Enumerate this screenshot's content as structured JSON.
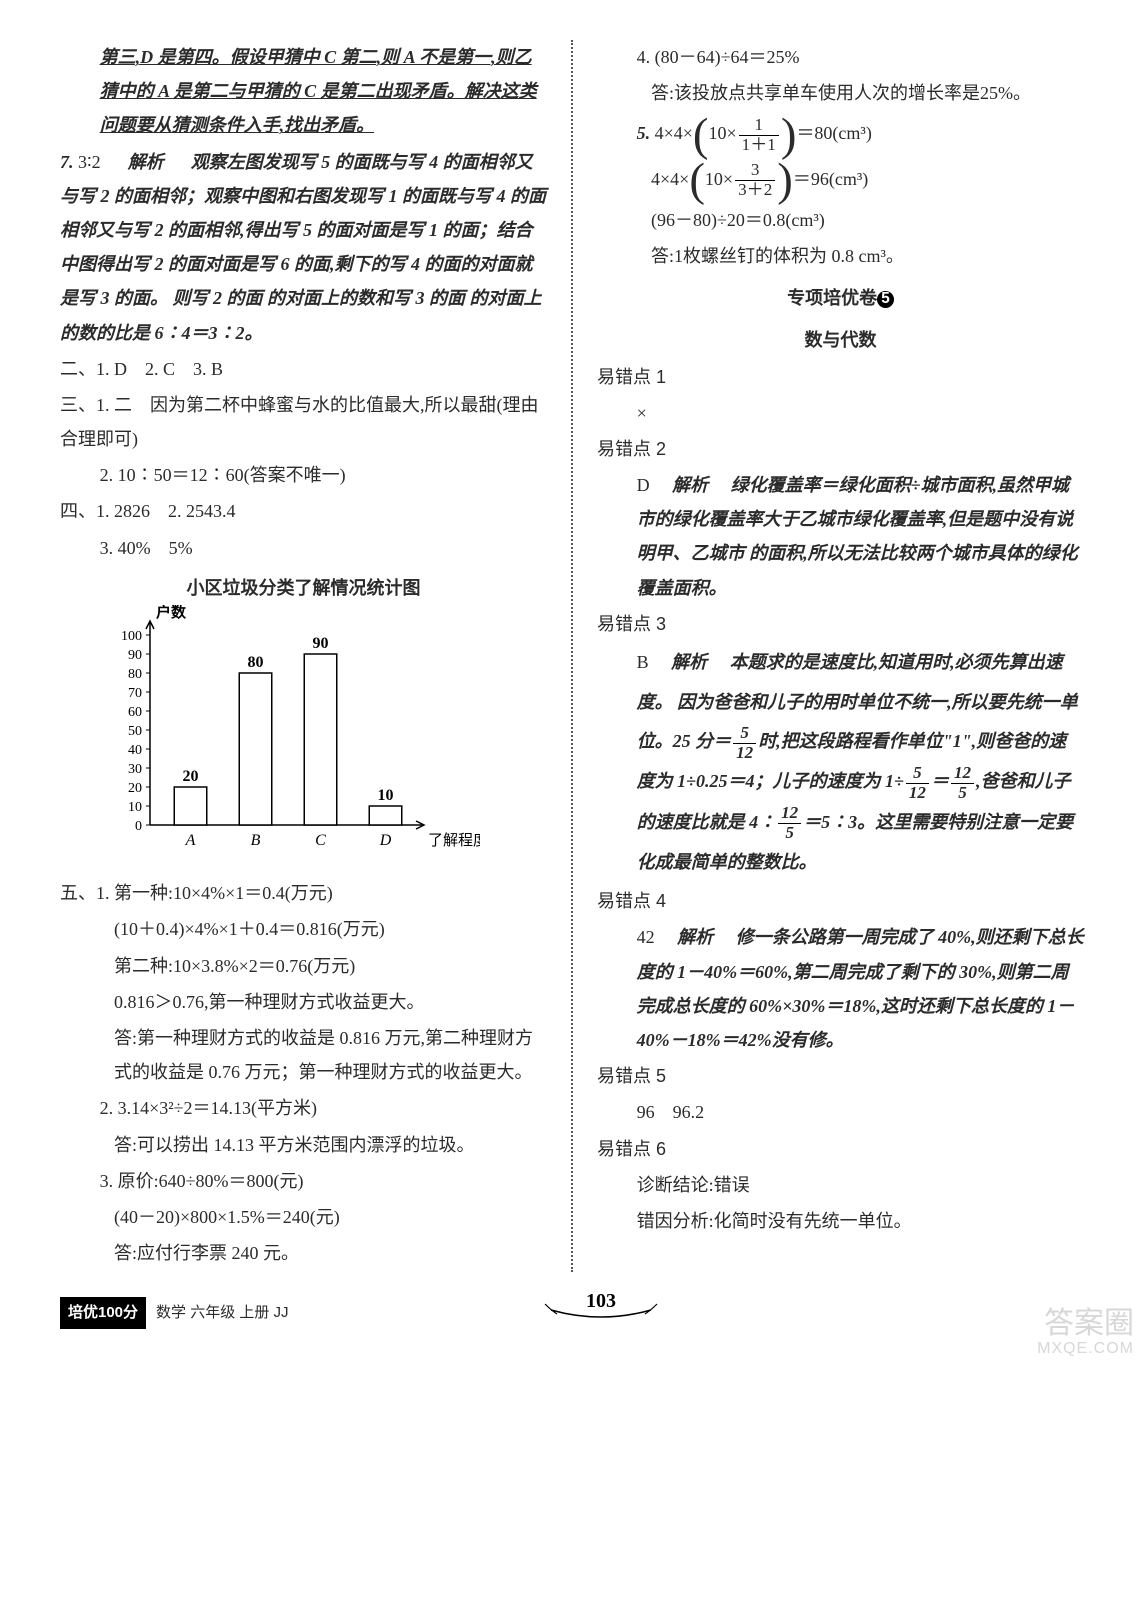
{
  "left": {
    "p1": "第三,D 是第四。假设甲猜中 C 第二,则 A 不是第一,则乙猜中的 A 是第二与甲猜的 C 是第二出现矛盾。解决这类问题要从猜测条件入手,找出矛盾。",
    "q7_label": "7.",
    "q7_ans": "3∶2",
    "q7_jiexi": "解析",
    "q7_text": "观察左图发现写 5 的面既与写 4 的面相邻又与写 2 的面相邻；观察中图和右图发现写 1 的面既与写 4 的面相邻又与写 2 的面相邻,得出写 5 的面对面是写 1 的面；结合中图得出写 2 的面对面是写 6 的面,剩下的写 4 的面的对面就是写 3 的面。 则写 2 的面 的对面上的数和写 3 的面 的对面上的数的比是 6∶4＝3∶2。",
    "s2": "二、1. D　2. C　3. B",
    "s3a": "三、1. 二　因为第二杯中蜂蜜与水的比值最大,所以最甜(理由合理即可)",
    "s3b": "2. 10∶50＝12∶60(答案不唯一)",
    "s4a": "四、1. 2826　2. 2543.4",
    "s4b": "3. 40%　5%",
    "chart": {
      "title": "小区垃圾分类了解情况统计图",
      "ylabel": "户数",
      "xlabel": "了解程度",
      "categories": [
        "A",
        "B",
        "C",
        "D"
      ],
      "values": [
        20,
        80,
        90,
        10
      ],
      "value_labels": [
        "20",
        "80",
        "90",
        "10"
      ],
      "ylim": [
        0,
        100
      ],
      "yticks": [
        0,
        10,
        20,
        30,
        40,
        50,
        60,
        70,
        80,
        90,
        100
      ],
      "bar_fill": "#ffffff",
      "bar_stroke": "#000000",
      "axis_color": "#000000",
      "bar_width": 0.5
    },
    "s5_1a": "五、1. 第一种:10×4%×1＝0.4(万元)",
    "s5_1b": "(10＋0.4)×4%×1＋0.4＝0.816(万元)",
    "s5_1c": "第二种:10×3.8%×2＝0.76(万元)",
    "s5_1d": "0.816＞0.76,第一种理财方式收益更大。",
    "s5_1e": "答:第一种理财方式的收益是 0.816 万元,第二种理财方式的收益是 0.76 万元；第一种理财方式的收益更大。",
    "s5_2a": "2. 3.14×3²÷2＝14.13(平方米)",
    "s5_2b": "答:可以捞出 14.13 平方米范围内漂浮的垃圾。",
    "s5_3a": "3. 原价:640÷80%＝800(元)",
    "s5_3b": "(40－20)×800×1.5%＝240(元)",
    "s5_3c": "答:应付行李票 240 元。"
  },
  "right": {
    "r4a": "4. (80－64)÷64＝25%",
    "r4b": "答:该投放点共享单车使用人次的增长率是25%。",
    "r5_label": "5.",
    "r5_eq1_pre": "4×4×",
    "r5_eq1_mid_a": "10×",
    "r5_eq1_frac1_num": "1",
    "r5_eq1_frac1_den": "1＋1",
    "r5_eq1_post": "＝80(cm³)",
    "r5_eq2_pre": "4×4×",
    "r5_eq2_mid_a": "10×",
    "r5_eq2_frac_num": "3",
    "r5_eq2_frac_den": "3＋2",
    "r5_eq2_post": "＝96(cm³)",
    "r5_c": "(96－80)÷20＝0.8(cm³)",
    "r5_d": "答:1枚螺丝钉的体积为 0.8 cm³。",
    "hdr1": "专项培优卷",
    "hdr1_num": "5",
    "hdr2": "数与代数",
    "e1_h": "易错点 1",
    "e1_a": "×",
    "e2_h": "易错点 2",
    "e2_ans": "D",
    "e2_jiexi": "解析",
    "e2_text": "绿化覆盖率＝绿化面积÷城市面积,虽然甲城市的绿化覆盖率大于乙城市绿化覆盖率,但是题中没有说明甲、乙城市 的面积,所以无法比较两个城市具体的绿化覆盖面积。",
    "e3_h": "易错点 3",
    "e3_ans": "B",
    "e3_jiexi": "解析",
    "e3_t1": "本题求的是速度比,知道用时,必须先算出速度。 因为爸爸和儿子的用时单位不统一,所以要先统一单位。25 分＝",
    "e3_f1_num": "5",
    "e3_f1_den": "12",
    "e3_t2": "时,把这段路程看作单位\"1\",则爸爸的速度为 1÷0.25＝4；儿子的速度为 1÷",
    "e3_f2_num": "5",
    "e3_f2_den": "12",
    "e3_eq": "＝",
    "e3_f3_num": "12",
    "e3_f3_den": "5",
    "e3_t3": ",爸爸和儿子的速度比就是 4∶",
    "e3_f4_num": "12",
    "e3_f4_den": "5",
    "e3_t4": "＝5∶3。这里需要特别注意一定要化成最简单的整数比。",
    "e4_h": "易错点 4",
    "e4_ans": "42",
    "e4_jiexi": "解析",
    "e4_text": "修一条公路第一周完成了 40%,则还剩下总长度的 1－40%＝60%,第二周完成了剩下的 30%,则第二周完成总长度的 60%×30%＝18%,这时还剩下总长度的 1－40%－18%＝42%没有修。",
    "e5_h": "易错点 5",
    "e5_a": "96　96.2",
    "e6_h": "易错点 6",
    "e6_a": "诊断结论:错误",
    "e6_b": "错因分析:化简时没有先统一单位。"
  },
  "footer": {
    "badge": "培优100分",
    "text": "数学 六年级 上册 JJ",
    "page": "103"
  },
  "watermark": {
    "main": "答案圈",
    "url": "MXQE.COM"
  }
}
